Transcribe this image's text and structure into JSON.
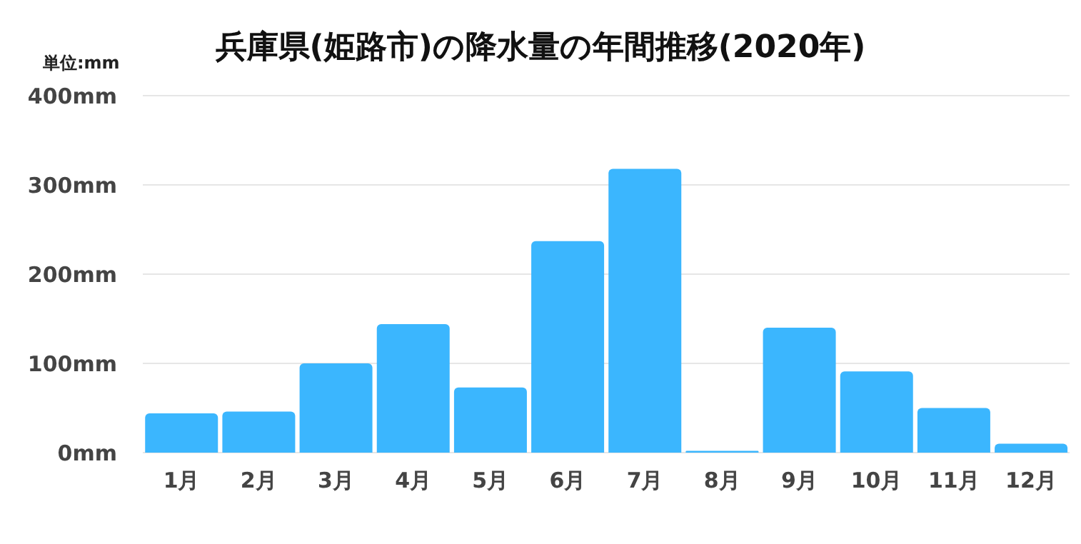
{
  "chart_data": {
    "type": "bar",
    "title": "兵庫県(姫路市)の降水量の年間推移(2020年)",
    "annotations": [
      "単位:mm"
    ],
    "categories": [
      "1月",
      "2月",
      "3月",
      "4月",
      "5月",
      "6月",
      "7月",
      "8月",
      "9月",
      "10月",
      "11月",
      "12月"
    ],
    "values": [
      44,
      46,
      100,
      144,
      73,
      237,
      318,
      2,
      140,
      91,
      50,
      10
    ],
    "color": "#3bb6fe",
    "ylim": [
      0,
      400
    ],
    "yticks": [
      {
        "value": 0,
        "label": "0mm"
      },
      {
        "value": 100,
        "label": "100mm"
      },
      {
        "value": 200,
        "label": "200mm"
      },
      {
        "value": 300,
        "label": "300mm"
      },
      {
        "value": 400,
        "label": "400mm"
      }
    ],
    "grid": "y"
  }
}
